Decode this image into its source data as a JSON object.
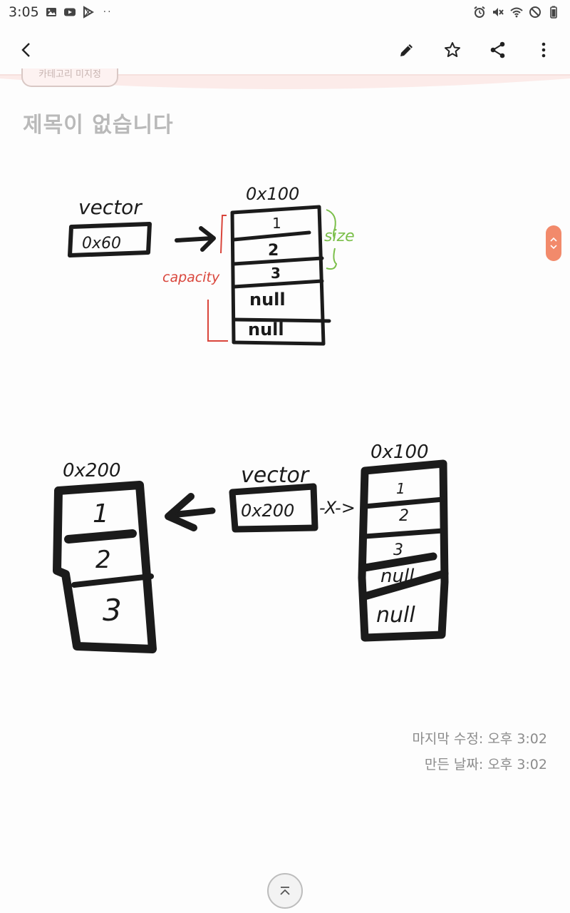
{
  "status_bar": {
    "time": "3:05",
    "dots": "··"
  },
  "app_bar": {
    "back_icon": "back-arrow-icon",
    "actions": [
      "pencil-icon",
      "star-icon",
      "share-icon",
      "more-vert-icon"
    ]
  },
  "note": {
    "category_label": "카테고리 미지정",
    "title": "제목이 없습니다",
    "drawing": {
      "top": {
        "vector_label": "vector",
        "pointer_value": "0x60",
        "address": "0x100",
        "cells": [
          "1",
          "2",
          "3",
          "null",
          "null"
        ],
        "size_label": "size",
        "capacity_label": "capacity"
      },
      "bottom": {
        "new_address": "0x200",
        "new_cells": [
          "1",
          "2",
          "3"
        ],
        "vector_label": "vector",
        "pointer_value": "0x200",
        "broken_link": "-X->",
        "old_address": "0x100",
        "old_cells": [
          "1",
          "2",
          "3",
          "null",
          "null"
        ]
      }
    },
    "modified": "마지막 수정: 오후 3:02",
    "created": "만든 날짜: 오후 3:02"
  },
  "colors": {
    "accent": "#f28a6b",
    "capacity": "#d9453b",
    "size": "#7bbf4a",
    "ink": "#1b1b1b"
  }
}
